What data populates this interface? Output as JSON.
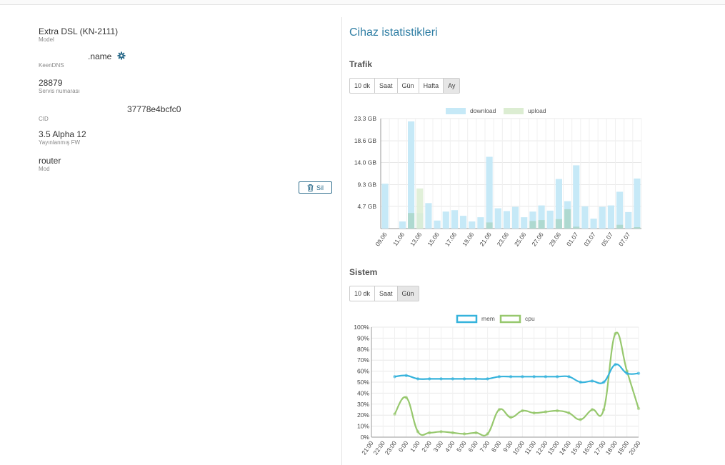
{
  "device": {
    "model": {
      "value": "Extra DSL (KN-2111)",
      "label": "Model"
    },
    "keendns": {
      "value": ".name",
      "label": "KeenDNS"
    },
    "service": {
      "value": "28879",
      "label": "Servis numarası"
    },
    "cid": {
      "value": "37778e4bcfc0",
      "label": "CID"
    },
    "firmware": {
      "value": "3.5 Alpha 12",
      "label": "Yayınlanmış FW"
    },
    "mode": {
      "value": "router",
      "label": "Mod"
    },
    "delete_label": "Sil"
  },
  "stats": {
    "title": "Cihaz istatistikleri",
    "traffic_heading": "Trafik",
    "traffic_buttons": [
      "10 dk",
      "Saat",
      "Gün",
      "Hafta",
      "Ay"
    ],
    "traffic_active": "Ay",
    "system_heading": "Sistem",
    "system_buttons": [
      "10 dk",
      "Saat",
      "Gün"
    ],
    "system_active": "Gün"
  },
  "colors": {
    "download": "#c6e9f7",
    "upload": "#dcedd2",
    "upload_overlap": "#a9d6c9",
    "mem": "#36b3dc",
    "cpu": "#97c86e",
    "accent": "#2f7ea4"
  },
  "chart_data": [
    {
      "type": "bar",
      "legend": [
        "download",
        "upload"
      ],
      "legend_position": "top",
      "unit": "GB",
      "yticks": [
        "4.7 GB",
        "9.3 GB",
        "14.0 GB",
        "18.6 GB",
        "23.3 GB"
      ],
      "ylim": [
        0,
        23.3
      ],
      "grid": true,
      "categories": [
        "09.06",
        "10.06",
        "11.06",
        "12.06",
        "13.06",
        "14.06",
        "15.06",
        "16.06",
        "17.06",
        "18.06",
        "19.06",
        "20.06",
        "21.06",
        "22.06",
        "23.06",
        "24.06",
        "25.06",
        "26.06",
        "27.06",
        "28.06",
        "29.06",
        "30.06",
        "01.07",
        "02.07",
        "03.07",
        "04.07",
        "05.07",
        "06.07",
        "07.07",
        "08.07"
      ],
      "xtick_labels": [
        "09.06",
        "",
        "11.06",
        "",
        "13.06",
        "",
        "15.06",
        "",
        "17.06",
        "",
        "19.06",
        "",
        "21.06",
        "",
        "23.06",
        "",
        "25.06",
        "",
        "27.06",
        "",
        "29.06",
        "",
        "01.07",
        "",
        "03.07",
        "",
        "05.07",
        "",
        "07.07",
        ""
      ],
      "series": [
        {
          "name": "download",
          "values": [
            9.5,
            0,
            1.5,
            22.7,
            3.3,
            5.4,
            1.7,
            3.6,
            3.9,
            2.7,
            1.5,
            2.4,
            15.2,
            4.3,
            3.7,
            4.6,
            2.4,
            3.6,
            4.9,
            3.8,
            10.5,
            5.8,
            13.4,
            4.7,
            2.1,
            4.6,
            4.9,
            7.8,
            3.5,
            10.6
          ]
        },
        {
          "name": "upload",
          "values": [
            0,
            0,
            0,
            3.3,
            8.5,
            0,
            0,
            0,
            0,
            0,
            0,
            0,
            1.3,
            0,
            0,
            0,
            0,
            1.6,
            1.8,
            0,
            2.0,
            4.1,
            0.4,
            0,
            0,
            0,
            0,
            0.8,
            0,
            0.3
          ]
        }
      ]
    },
    {
      "type": "line",
      "legend": [
        "mem",
        "cpu"
      ],
      "legend_position": "top",
      "ylim": [
        0,
        100
      ],
      "yticks": [
        "0%",
        "10%",
        "20%",
        "30%",
        "40%",
        "50%",
        "60%",
        "70%",
        "80%",
        "90%",
        "100%"
      ],
      "grid": true,
      "categories": [
        "21:00",
        "22:00",
        "23:00",
        "0:00",
        "1:00",
        "2:00",
        "3:00",
        "4:00",
        "5:00",
        "6:00",
        "7:00",
        "8:00",
        "9:00",
        "10:00",
        "11:00",
        "12:00",
        "13:00",
        "14:00",
        "15:00",
        "16:00",
        "17:00",
        "18:00",
        "19:00",
        "20:00"
      ],
      "series": [
        {
          "name": "mem",
          "values": [
            null,
            null,
            55,
            56,
            53,
            53,
            53,
            53,
            53,
            53,
            53,
            55,
            55,
            55,
            55,
            55,
            55,
            55,
            50,
            51,
            50,
            66,
            58,
            58
          ]
        },
        {
          "name": "cpu",
          "values": [
            null,
            null,
            21,
            36,
            5,
            4,
            5,
            4,
            3,
            4,
            3,
            25,
            18,
            24,
            22,
            23,
            24,
            22,
            16,
            25,
            25,
            94,
            60,
            26
          ]
        }
      ]
    }
  ]
}
